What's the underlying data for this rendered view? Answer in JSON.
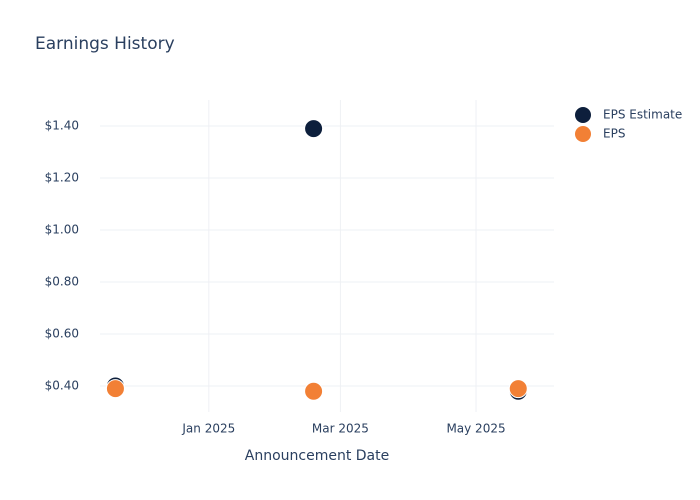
{
  "chart_data": {
    "type": "scatter",
    "title": "Earnings History",
    "x_label": "Announcement Date",
    "x": [
      2024.885,
      2025.129,
      2025.381
    ],
    "series": [
      {
        "name": "EPS Estimate",
        "color": "#0d1f3c",
        "values": [
          0.4,
          1.39,
          0.38
        ]
      },
      {
        "name": "EPS",
        "color": "#f28035",
        "values": [
          0.39,
          0.38,
          0.39
        ]
      }
    ],
    "xlim": [
      2024.866,
      2025.425
    ],
    "xticks": [
      {
        "value": 2025.0,
        "label": "Jan 2025"
      },
      {
        "value": 2025.162,
        "label": "Mar 2025"
      },
      {
        "value": 2025.329,
        "label": "May 2025"
      }
    ],
    "ylim": [
      0.3,
      1.5
    ],
    "yticks": [
      {
        "value": 0.4,
        "label": "$0.40"
      },
      {
        "value": 0.6,
        "label": "$0.60"
      },
      {
        "value": 0.8,
        "label": "$0.80"
      },
      {
        "value": 1.0,
        "label": "$1.00"
      },
      {
        "value": 1.2,
        "label": "$1.20"
      },
      {
        "value": 1.4,
        "label": "$1.40"
      }
    ],
    "grid": true,
    "legend": "top-right"
  }
}
